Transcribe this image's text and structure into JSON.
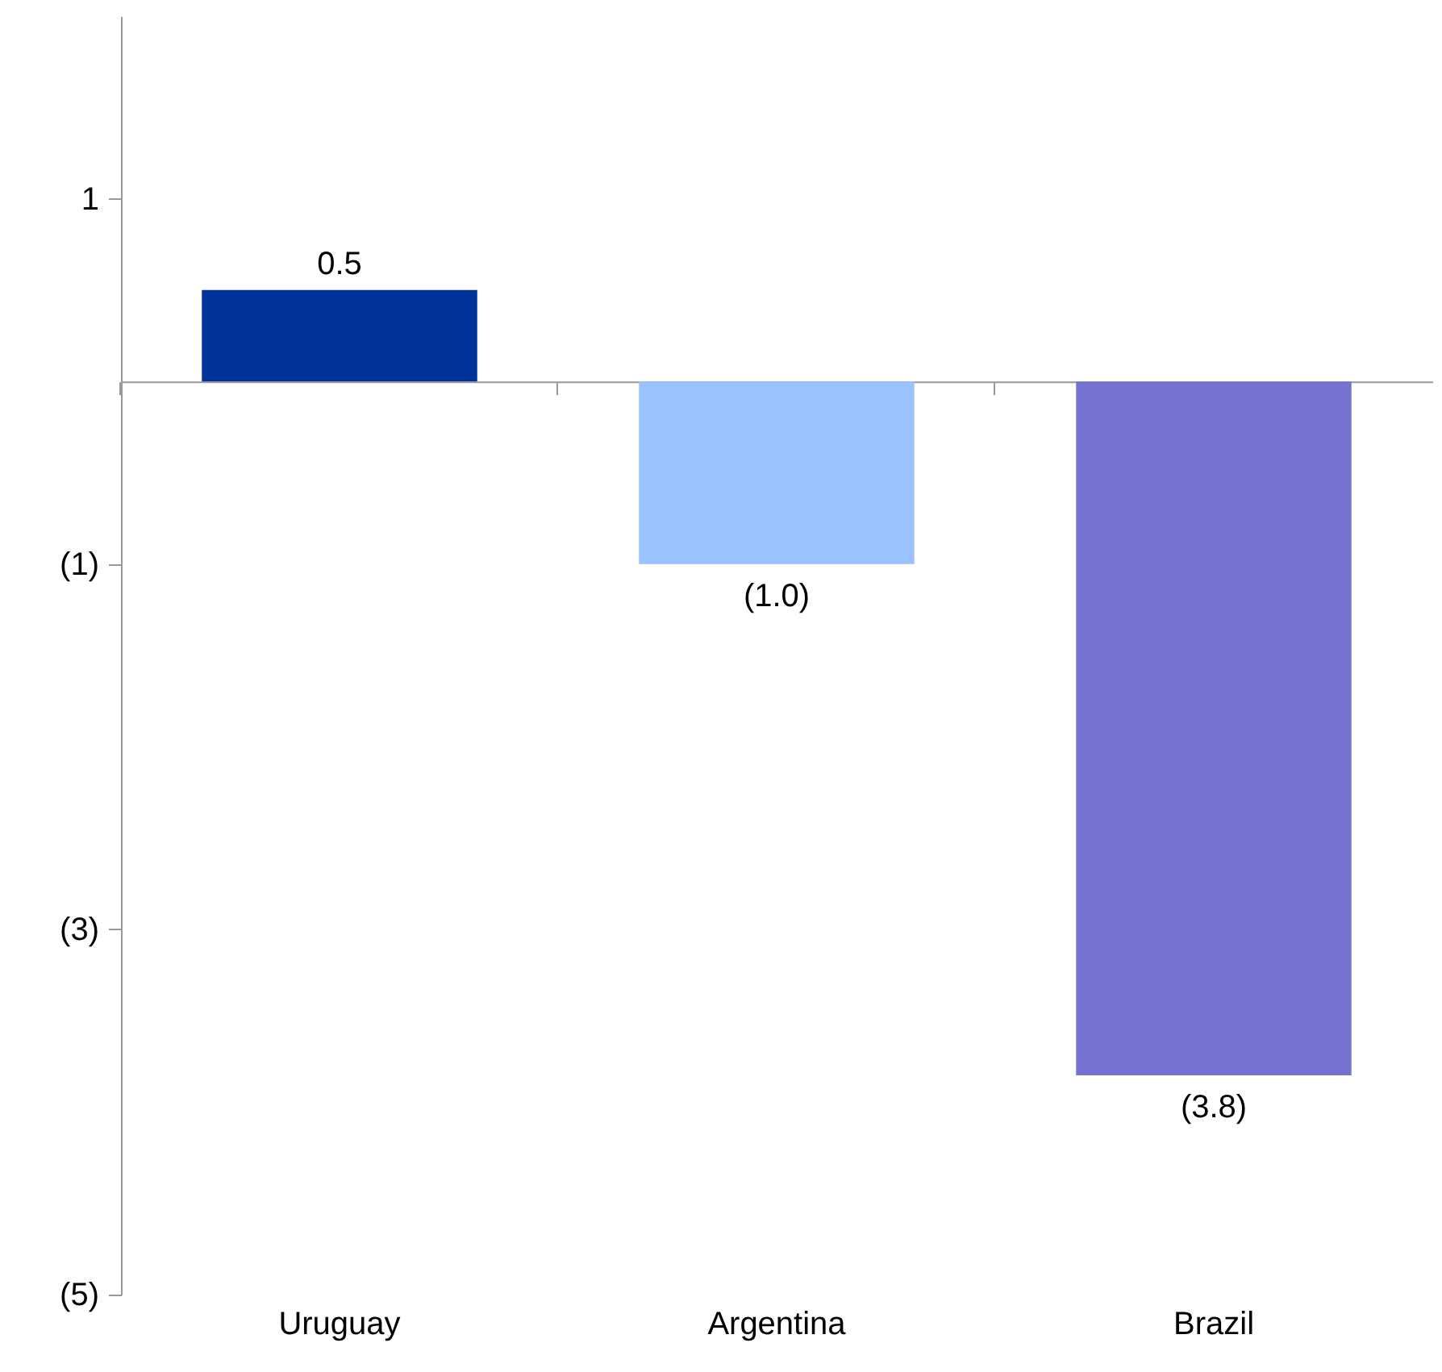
{
  "chart_data": {
    "type": "bar",
    "categories": [
      "Uruguay",
      "Argentina",
      "Brazil"
    ],
    "values": [
      0.5,
      -1.0,
      -3.8
    ],
    "colors": [
      "#003399",
      "#99c2ff",
      "#7474d0"
    ],
    "value_labels": [
      "0.5",
      "(1.0)",
      "(3.8)"
    ],
    "ylim": [
      -5,
      2
    ],
    "yticks": [
      1,
      {
        "value": -1,
        "label": "(1)"
      },
      {
        "value": -3,
        "label": "(3)"
      },
      {
        "value": -5,
        "label": "(5)"
      }
    ],
    "grid": false
  }
}
